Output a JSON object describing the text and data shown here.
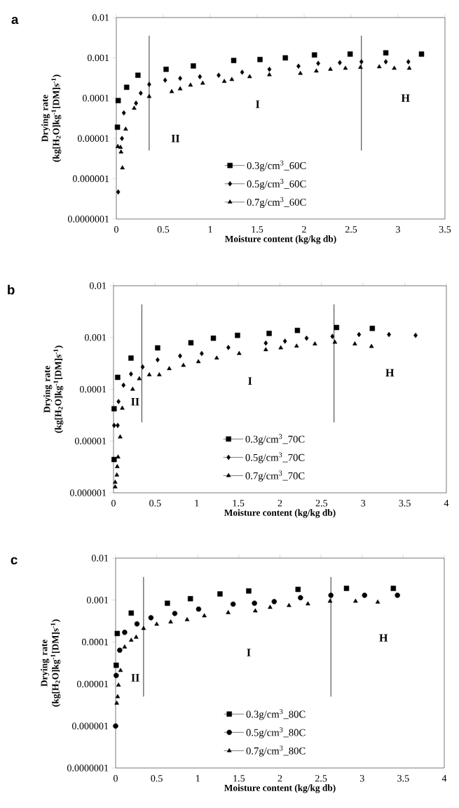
{
  "chart_data": [
    {
      "type": "scatter",
      "title": "a",
      "xlabel": "Moisture content (kg/kg db)",
      "ylabel": "Drying rate (kg[H$_{2}$O]kg$^{-1}$[DM]s$^{-1}$)",
      "log": "y",
      "legend": "bottom",
      "xlim": [
        0,
        3.5
      ],
      "xticks": [
        0,
        0.5,
        1,
        1.5,
        2,
        2.5,
        3,
        3.5
      ],
      "ylim": [
        1e-07,
        0.01
      ],
      "yticks": [
        {
          "value": 1e-07,
          "label": "0.0000001"
        },
        {
          "value": 1e-06,
          "label": "0.000001"
        },
        {
          "value": 1e-05,
          "label": "0.00001"
        },
        {
          "value": 0.0001,
          "label": "0.0001"
        },
        {
          "value": 0.001,
          "label": "0.001"
        },
        {
          "value": 0.01,
          "label": "0.01"
        }
      ],
      "series": [
        {
          "name": "0.3g/cm$^{3}$_60C",
          "color": "#000000",
          "marker": "square",
          "x": [
            0.012,
            0.02,
            0.11,
            0.23,
            0.53,
            0.82,
            1.25,
            1.53,
            1.8,
            2.11,
            2.49,
            2.87,
            3.25
          ],
          "values": [
            1.9e-05,
            8.7e-05,
            0.000186,
            0.00037,
            0.00052,
            0.00063,
            0.00086,
            0.00091,
            0.001,
            0.00118,
            0.00124,
            0.00133,
            0.00124
          ]
        },
        {
          "name": "0.5g/cm$^{3}$_60C",
          "color": "#000000",
          "marker": "diamond",
          "x": [
            0.02,
            0.06,
            0.08,
            0.21,
            0.26,
            0.35,
            0.52,
            0.68,
            0.89,
            1.09,
            1.34,
            1.63,
            1.94,
            2.15,
            2.38,
            2.61,
            2.87,
            3.11
          ],
          "values": [
            4.7e-07,
            1e-05,
            4.3e-05,
            7.5e-05,
            0.000133,
            0.00022,
            0.00028,
            0.00031,
            0.00034,
            0.00037,
            0.00044,
            0.00052,
            0.00062,
            0.00073,
            0.00076,
            0.0008,
            0.0008,
            0.0008
          ]
        },
        {
          "name": "0.7g/cm$^{3}$_60C",
          "color": "#000000",
          "marker": "triangle",
          "x": [
            0.016,
            0.045,
            0.05,
            0.065,
            0.1,
            0.19,
            0.35,
            0.59,
            0.68,
            0.79,
            0.92,
            1.15,
            1.23,
            1.42,
            1.63,
            1.96,
            2.13,
            2.28,
            2.44,
            2.6,
            2.8,
            2.96,
            3.12
          ],
          "values": [
            6.3e-06,
            6e-06,
            4.6e-06,
            1.86e-06,
            1.7e-05,
            5.6e-05,
            0.00011,
            0.000145,
            0.00017,
            0.00021,
            0.000235,
            0.00026,
            0.00029,
            0.00034,
            0.00038,
            0.00041,
            0.00047,
            0.00052,
            0.00055,
            0.00058,
            0.0006,
            0.00055,
            0.00055
          ]
        }
      ],
      "ref_lines": [
        {
          "axis": "x",
          "value": 0.35,
          "color": "#000000"
        },
        {
          "axis": "x",
          "value": 2.61,
          "color": "#000000"
        }
      ],
      "annotations": [
        "II",
        "I",
        "H"
      ]
    },
    {
      "type": "scatter",
      "title": "b",
      "xlabel": "Moisture content (kg/kg db)",
      "ylabel": "Drying rate (kg[H$_{2}$O]kg$^{-1}$[DM]s$^{-1}$)",
      "log": "y",
      "legend": "bottom",
      "xlim": [
        0,
        4
      ],
      "xticks": [
        0,
        0.5,
        1,
        1.5,
        2,
        2.5,
        3,
        3.5,
        4
      ],
      "ylim": [
        1e-06,
        0.01
      ],
      "yticks": [
        {
          "value": 1e-06,
          "label": "0.000001"
        },
        {
          "value": 1e-05,
          "label": "0.00001"
        },
        {
          "value": 0.0001,
          "label": "0.0001"
        },
        {
          "value": 0.001,
          "label": "0.001"
        },
        {
          "value": 0.01,
          "label": "0.01"
        }
      ],
      "series": [
        {
          "name": "0.3g/cm$^{3}$_70C",
          "color": "#000000",
          "marker": "square",
          "x": [
            0.007,
            0.007,
            0.05,
            0.21,
            0.53,
            0.93,
            1.2,
            1.49,
            1.87,
            2.21,
            2.68,
            3.11
          ],
          "values": [
            4.2e-05,
            4.4e-06,
            0.00017,
            0.0004,
            0.00063,
            0.00079,
            0.00097,
            0.0011,
            0.0012,
            0.00137,
            0.00156,
            0.0015
          ]
        },
        {
          "name": "0.5g/cm$^{3}$_70C",
          "color": "#000000",
          "marker": "diamond",
          "x": [
            0.007,
            0.05,
            0.06,
            0.12,
            0.21,
            0.35,
            0.53,
            0.8,
            1.06,
            1.38,
            1.83,
            2.06,
            2.32,
            2.63,
            2.95,
            3.31,
            3.63
          ],
          "values": [
            2e-05,
            2e-05,
            5.8e-05,
            0.00012,
            0.000197,
            0.00027,
            0.00037,
            0.00044,
            0.00049,
            0.00064,
            0.00078,
            0.00085,
            0.00097,
            0.00105,
            0.00114,
            0.00114,
            0.0011
          ]
        },
        {
          "name": "0.7g/cm$^{3}$_70C",
          "color": "#000000",
          "marker": "triangle",
          "x": [
            0.02,
            0.02,
            0.04,
            0.045,
            0.055,
            0.08,
            0.105,
            0.23,
            0.31,
            0.43,
            0.55,
            0.67,
            0.84,
            1.02,
            1.24,
            1.51,
            1.83,
            2.01,
            2.2,
            2.42,
            2.66,
            2.9,
            3.1
          ],
          "values": [
            1.3e-06,
            1.6e-06,
            2.2e-06,
            3.2e-06,
            4.9e-06,
            1.2e-05,
            4.3e-05,
            0.0001,
            0.00016,
            0.00019,
            0.00019,
            0.00025,
            0.00029,
            0.00034,
            0.0004,
            0.00049,
            0.00058,
            0.00063,
            0.00068,
            0.00075,
            0.00081,
            0.00075,
            0.00067
          ]
        }
      ],
      "ref_lines": [
        {
          "axis": "x",
          "value": 0.34,
          "color": "#000000"
        },
        {
          "axis": "x",
          "value": 2.65,
          "color": "#000000"
        }
      ],
      "annotations": [
        "II",
        "I",
        "H"
      ]
    },
    {
      "type": "scatter",
      "title": "c",
      "xlabel": "Moisture content (kg/kg db)",
      "ylabel": "Drying rate (kg[H$_{2}$O]kg$^{-1}$[DM]s$^{-1}$)",
      "log": "y",
      "legend": "bottom",
      "xlim": [
        0,
        4
      ],
      "xticks": [
        0,
        0.5,
        1,
        1.5,
        2,
        2.5,
        3,
        3.5,
        4
      ],
      "ylim": [
        1e-07,
        0.01
      ],
      "yticks": [
        {
          "value": 1e-07,
          "label": "0.0000001"
        },
        {
          "value": 1e-06,
          "label": "0.000001"
        },
        {
          "value": 1e-05,
          "label": "0.00001"
        },
        {
          "value": 0.0001,
          "label": "0.0001"
        },
        {
          "value": 0.001,
          "label": "0.001"
        },
        {
          "value": 0.01,
          "label": "0.01"
        }
      ],
      "series": [
        {
          "name": "0.3g/cm$^{3}$_80C",
          "color": "#000000",
          "marker": "square",
          "x": [
            0.007,
            0.02,
            0.19,
            0.63,
            0.91,
            1.27,
            1.62,
            2.22,
            2.81,
            3.38
          ],
          "values": [
            2.8e-05,
            0.00016,
            0.00049,
            0.00084,
            0.00108,
            0.0014,
            0.00165,
            0.0018,
            0.0019,
            0.0019
          ]
        },
        {
          "name": "0.5g/cm$^{3}$_80C",
          "color": "#000000",
          "marker": "circle",
          "x": [
            0,
            0.007,
            0.05,
            0.11,
            0.26,
            0.43,
            0.72,
            1.01,
            1.43,
            1.69,
            1.93,
            2.25,
            2.62,
            3.03,
            3.43
          ],
          "values": [
            1e-06,
            1.6e-05,
            6.4e-05,
            0.00017,
            0.00027,
            0.00038,
            0.00048,
            0.00061,
            0.0008,
            0.00084,
            0.00092,
            0.00114,
            0.0013,
            0.0013,
            0.0013
          ]
        },
        {
          "name": "0.7g/cm$^{3}$_80C",
          "color": "#000000",
          "marker": "triangle",
          "x": [
            0.014,
            0.025,
            0.035,
            0.06,
            0.11,
            0.19,
            0.25,
            0.34,
            0.5,
            0.67,
            0.87,
            1.08,
            1.37,
            1.7,
            1.88,
            2.11,
            2.34,
            2.61,
            2.92,
            3.19
          ],
          "values": [
            3.5e-06,
            5e-06,
            9.4e-06,
            2.1e-05,
            7.6e-05,
            0.00011,
            0.00013,
            0.00021,
            0.000265,
            0.0003,
            0.00034,
            0.00042,
            0.0005,
            0.00055,
            0.00067,
            0.00074,
            0.00081,
            0.00094,
            0.00094,
            0.00089
          ]
        }
      ],
      "ref_lines": [
        {
          "axis": "x",
          "value": 0.34,
          "color": "#000000"
        },
        {
          "axis": "x",
          "value": 2.62,
          "color": "#000000"
        }
      ],
      "annotations": [
        "II",
        "I",
        "H"
      ]
    }
  ]
}
